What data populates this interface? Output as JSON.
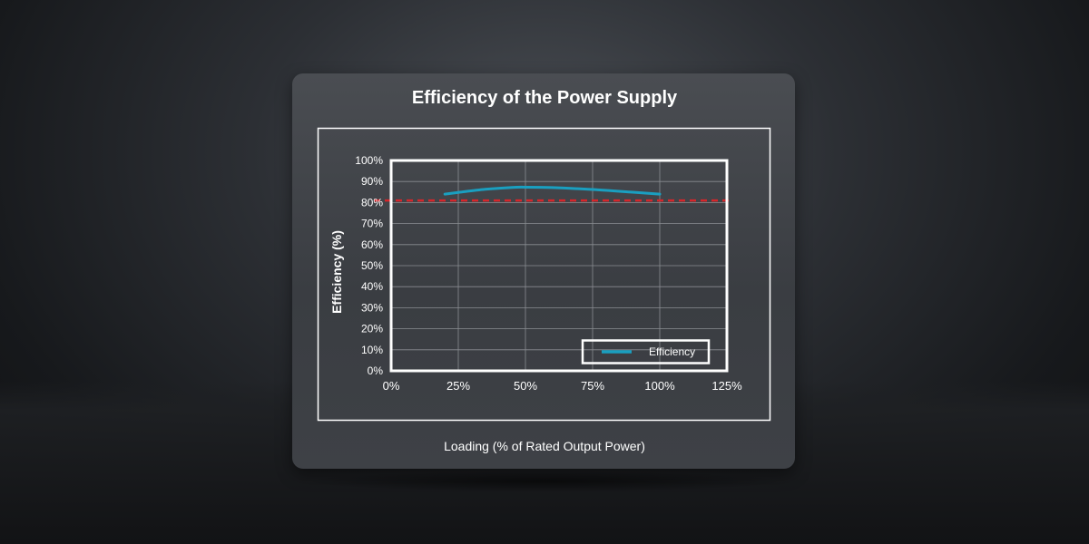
{
  "chart_data": {
    "type": "line",
    "title": "Efficiency of the Power Supply",
    "xlabel": "Loading (% of Rated Output Power)",
    "ylabel": "Efficiency (%)",
    "xlim": [
      0,
      125
    ],
    "ylim": [
      0,
      100
    ],
    "x_ticks": [
      "0%",
      "25%",
      "50%",
      "75%",
      "100%",
      "125%"
    ],
    "y_ticks": [
      "0%",
      "10%",
      "20%",
      "30%",
      "40%",
      "50%",
      "60%",
      "70%",
      "80%",
      "90%",
      "100%"
    ],
    "grid": true,
    "legend_position": "bottom-right",
    "series": [
      {
        "name": "Efficiency",
        "color": "#1a9fc0",
        "x": [
          20,
          25,
          35,
          45,
          50,
          60,
          75,
          90,
          100
        ],
        "y": [
          84,
          84.8,
          86.3,
          87.2,
          87.3,
          87.1,
          86.2,
          84.9,
          84
        ]
      }
    ],
    "reference_line": {
      "y": 81,
      "color": "#d6262b",
      "style": "dashed"
    }
  }
}
